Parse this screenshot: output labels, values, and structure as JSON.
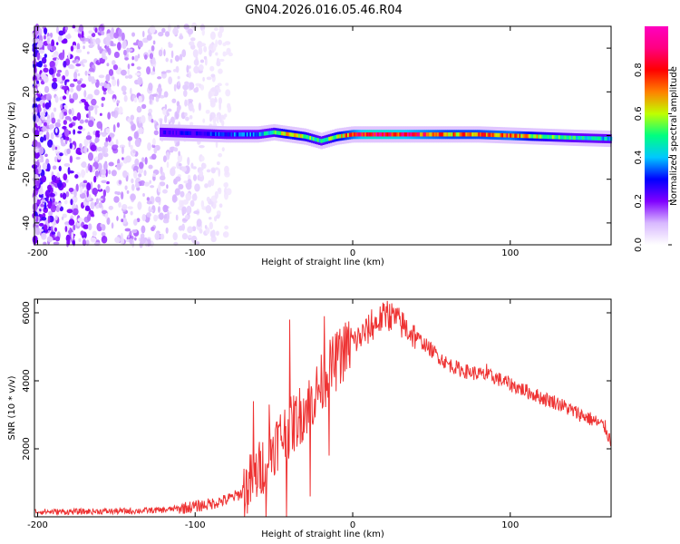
{
  "title": "GN04.2026.016.05.46.R04",
  "chart_data": [
    {
      "type": "heatmap",
      "xlabel": "Height of straight line (km)",
      "ylabel": "Frequency (Hz)",
      "xlim": [
        -202,
        164
      ],
      "ylim": [
        -50,
        50
      ],
      "xticks": [
        -200,
        -100,
        0,
        100
      ],
      "yticks": [
        -40,
        -20,
        0,
        20,
        40
      ],
      "colorbar": {
        "label": "Normalized spectral amplitude",
        "range": [
          0,
          1
        ],
        "ticks": [
          0.0,
          0.2,
          0.4,
          0.6,
          0.8
        ],
        "colors": [
          "#ffffff",
          "#d8b8ff",
          "#8000ff",
          "#0000ff",
          "#00c8ff",
          "#00ff80",
          "#c0ff00",
          "#ff8000",
          "#ff0000",
          "#ff0080",
          "#ff00c0"
        ]
      },
      "noise_region_x": [
        -202,
        -100
      ],
      "signal_start_x": -122,
      "ridge": {
        "x": [
          -122,
          -100,
          -80,
          -60,
          -50,
          -40,
          -30,
          -20,
          -10,
          0,
          10,
          20,
          40,
          60,
          80,
          100,
          120,
          140,
          164
        ],
        "freq": [
          1.5,
          1.0,
          0.5,
          0.5,
          1.5,
          0.5,
          -0.5,
          -2.5,
          -0.5,
          0.5,
          0.5,
          0.5,
          0.5,
          0.5,
          0.5,
          0.0,
          -0.5,
          -1.0,
          -1.5
        ],
        "peak_amplitude": [
          0.25,
          0.3,
          0.35,
          0.4,
          0.55,
          0.7,
          0.6,
          0.5,
          0.65,
          0.8,
          0.97,
          0.97,
          0.85,
          0.75,
          0.75,
          0.8,
          0.6,
          0.5,
          0.45
        ]
      }
    },
    {
      "type": "line",
      "xlabel": "Height of straight line (km)",
      "ylabel": "SNR (10 * v/v)",
      "xlim": [
        -202,
        164
      ],
      "ylim": [
        0,
        6400
      ],
      "xticks": [
        -200,
        -100,
        0,
        100
      ],
      "yticks": [
        2000,
        4000,
        6000
      ],
      "color": "#ee3333",
      "x": [
        -202,
        -180,
        -160,
        -140,
        -120,
        -110,
        -100,
        -90,
        -80,
        -70,
        -60,
        -50,
        -45,
        -40,
        -35,
        -30,
        -25,
        -20,
        -15,
        -10,
        -5,
        0,
        5,
        10,
        15,
        20,
        25,
        30,
        40,
        50,
        60,
        70,
        80,
        90,
        100,
        110,
        120,
        130,
        140,
        150,
        160,
        164
      ],
      "y": [
        150,
        150,
        160,
        170,
        200,
        250,
        300,
        380,
        500,
        700,
        1300,
        2100,
        2400,
        2600,
        2900,
        3200,
        3500,
        3900,
        4300,
        4600,
        4900,
        5100,
        5300,
        5500,
        5700,
        5900,
        5900,
        5700,
        5300,
        4900,
        4500,
        4300,
        4200,
        4100,
        3900,
        3700,
        3500,
        3350,
        3100,
        2900,
        2650,
        2200
      ],
      "spikes": [
        {
          "x": -63,
          "y": 3400
        },
        {
          "x": -53,
          "y": 3300
        },
        {
          "x": -40,
          "y": 5800
        },
        {
          "x": -18,
          "y": 5900
        },
        {
          "x": -9,
          "y": 5000
        },
        {
          "x": 12,
          "y": 6100
        },
        {
          "x": 22,
          "y": 6350
        },
        {
          "x": 28,
          "y": 6100
        },
        {
          "x": 48,
          "y": 4950
        },
        {
          "x": 85,
          "y": 4500
        }
      ],
      "dips": [
        {
          "x": -55,
          "y": 0
        },
        {
          "x": -42,
          "y": 0
        },
        {
          "x": -27,
          "y": 600
        },
        {
          "x": -15,
          "y": 1800
        }
      ],
      "noise_level": 180
    }
  ]
}
